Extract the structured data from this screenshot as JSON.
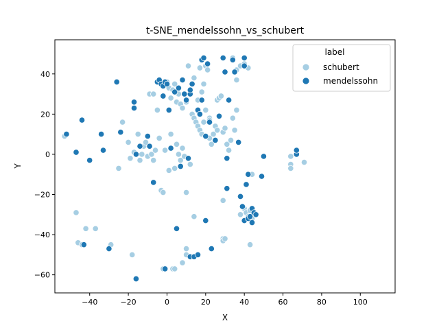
{
  "chart_data": {
    "type": "scatter",
    "title": "t-SNE_mendelssohn_vs_schubert",
    "xlabel": "X",
    "ylabel": "Y",
    "xlim": [
      -58,
      118
    ],
    "ylim": [
      -69,
      57
    ],
    "xticks": [
      -40,
      -20,
      0,
      20,
      40,
      60,
      80,
      100
    ],
    "yticks": [
      -60,
      -40,
      -20,
      0,
      20,
      40
    ],
    "grid": false,
    "legend": {
      "title": "label",
      "placement": "top-right"
    },
    "series": [
      {
        "name": "schubert",
        "color": "#a6cee3",
        "points": [
          [
            -53,
            9
          ],
          [
            -47,
            -29
          ],
          [
            -46,
            -44
          ],
          [
            -44,
            -45
          ],
          [
            -42,
            -37
          ],
          [
            -37,
            -37
          ],
          [
            -25,
            -7
          ],
          [
            -23,
            16
          ],
          [
            -18,
            -50
          ],
          [
            -20,
            6
          ],
          [
            -19,
            -2
          ],
          [
            -17,
            1
          ],
          [
            -15,
            10
          ],
          [
            -14,
            -3
          ],
          [
            -13,
            0
          ],
          [
            -12,
            4
          ],
          [
            -11,
            6
          ],
          [
            -10,
            -1
          ],
          [
            -8,
            0
          ],
          [
            -7,
            -3
          ],
          [
            -6,
            2
          ],
          [
            -4,
            8
          ],
          [
            -3,
            -18
          ],
          [
            -2,
            -19
          ],
          [
            -1,
            2
          ],
          [
            1,
            -8
          ],
          [
            2,
            10
          ],
          [
            4,
            -7
          ],
          [
            5,
            5
          ],
          [
            6,
            0
          ],
          [
            7,
            -3
          ],
          [
            8,
            3
          ],
          [
            9,
            -1
          ],
          [
            10,
            -19
          ],
          [
            10,
            -47
          ],
          [
            10,
            -50
          ],
          [
            14,
            -31
          ],
          [
            3,
            -57
          ],
          [
            4,
            -57
          ],
          [
            8,
            -54
          ],
          [
            -9,
            30
          ],
          [
            -7,
            30
          ],
          [
            -5,
            22
          ],
          [
            0,
            36
          ],
          [
            1,
            33
          ],
          [
            2,
            28
          ],
          [
            3,
            32
          ],
          [
            4,
            35
          ],
          [
            5,
            26
          ],
          [
            6,
            30
          ],
          [
            7,
            25
          ],
          [
            8,
            23
          ],
          [
            9,
            30
          ],
          [
            10,
            26
          ],
          [
            11,
            44
          ],
          [
            12,
            32
          ],
          [
            13,
            20
          ],
          [
            14,
            18
          ],
          [
            15,
            16
          ],
          [
            16,
            14
          ],
          [
            17,
            12
          ],
          [
            18,
            10
          ],
          [
            16,
            27
          ],
          [
            17,
            43
          ],
          [
            18,
            31
          ],
          [
            19,
            16
          ],
          [
            20,
            22
          ],
          [
            20,
            44
          ],
          [
            21,
            42
          ],
          [
            22,
            18
          ],
          [
            22,
            8
          ],
          [
            23,
            5
          ],
          [
            24,
            10
          ],
          [
            25,
            14
          ],
          [
            26,
            12
          ],
          [
            26,
            27
          ],
          [
            27,
            28
          ],
          [
            28,
            29
          ],
          [
            29,
            11
          ],
          [
            30,
            13
          ],
          [
            31,
            5
          ],
          [
            32,
            2
          ],
          [
            33,
            7
          ],
          [
            34,
            18
          ],
          [
            35,
            12
          ],
          [
            36,
            22
          ],
          [
            36,
            42
          ],
          [
            34,
            48
          ],
          [
            38,
            44
          ],
          [
            40,
            45
          ],
          [
            42,
            43
          ],
          [
            44,
            -10
          ],
          [
            38,
            -30
          ],
          [
            40,
            -27
          ],
          [
            41,
            -29
          ],
          [
            42,
            -31
          ],
          [
            43,
            -28
          ],
          [
            44,
            -32
          ],
          [
            29,
            -23
          ],
          [
            29,
            -42
          ],
          [
            29,
            -43
          ],
          [
            43,
            -45
          ],
          [
            64,
            -1
          ],
          [
            64,
            -5
          ],
          [
            64,
            -7
          ],
          [
            71,
            -4
          ],
          [
            -29,
            -45
          ],
          [
            30,
            -42
          ],
          [
            22,
            17
          ],
          [
            14,
            38
          ],
          [
            19,
            35
          ],
          [
            36,
            37
          ],
          [
            12,
            -5
          ],
          [
            -2,
            -57
          ]
        ]
      },
      {
        "name": "mendelssohn",
        "color": "#1f78b4",
        "points": [
          [
            -52,
            10
          ],
          [
            -47,
            1
          ],
          [
            -44,
            17
          ],
          [
            -43,
            -45
          ],
          [
            -40,
            -3
          ],
          [
            -34,
            10
          ],
          [
            -33,
            2
          ],
          [
            -30,
            -47
          ],
          [
            -26,
            36
          ],
          [
            -24,
            11
          ],
          [
            -17,
            26
          ],
          [
            -17,
            23
          ],
          [
            -16,
            0
          ],
          [
            -14,
            4
          ],
          [
            -10,
            9
          ],
          [
            -9,
            4
          ],
          [
            -7,
            -14
          ],
          [
            -5,
            36
          ],
          [
            -4,
            37
          ],
          [
            -3,
            35
          ],
          [
            -2,
            34
          ],
          [
            -1,
            36
          ],
          [
            -2,
            29
          ],
          [
            0,
            35
          ],
          [
            1,
            22
          ],
          [
            2,
            3
          ],
          [
            4,
            31
          ],
          [
            5,
            -37
          ],
          [
            6,
            33
          ],
          [
            7,
            -6
          ],
          [
            8,
            37
          ],
          [
            9,
            30
          ],
          [
            10,
            27
          ],
          [
            11,
            -2
          ],
          [
            12,
            30
          ],
          [
            12,
            -51
          ],
          [
            13,
            35
          ],
          [
            14,
            -51
          ],
          [
            16,
            -50
          ],
          [
            16,
            22
          ],
          [
            17,
            20
          ],
          [
            18,
            27
          ],
          [
            18,
            47
          ],
          [
            19,
            48
          ],
          [
            20,
            9
          ],
          [
            20,
            -33
          ],
          [
            21,
            45
          ],
          [
            22,
            16
          ],
          [
            23,
            -47
          ],
          [
            25,
            7
          ],
          [
            27,
            19
          ],
          [
            29,
            48
          ],
          [
            30,
            41
          ],
          [
            31,
            -2
          ],
          [
            31,
            -17
          ],
          [
            32,
            27
          ],
          [
            34,
            47
          ],
          [
            35,
            41
          ],
          [
            37,
            6
          ],
          [
            38,
            -21
          ],
          [
            39,
            -26
          ],
          [
            40,
            -33
          ],
          [
            40,
            44
          ],
          [
            41,
            -15
          ],
          [
            42,
            -10
          ],
          [
            42,
            -32
          ],
          [
            43,
            -31
          ],
          [
            44,
            -27
          ],
          [
            45,
            -29
          ],
          [
            46,
            -30
          ],
          [
            44,
            -34
          ],
          [
            49,
            -11
          ],
          [
            50,
            -1
          ],
          [
            67,
            0
          ],
          [
            67,
            2
          ],
          [
            -16,
            -62
          ],
          [
            -1,
            -57
          ],
          [
            1,
            22
          ],
          [
            12,
            32
          ],
          [
            40,
            48
          ]
        ]
      }
    ]
  }
}
